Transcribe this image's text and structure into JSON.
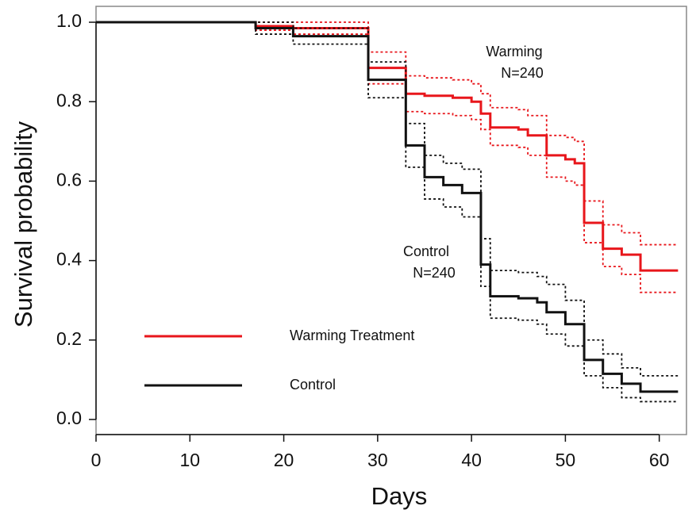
{
  "chart_data": {
    "type": "step",
    "xlabel": "Days",
    "ylabel": "Survival probability",
    "xlim": [
      0,
      62.9
    ],
    "ylim": [
      -0.038,
      1.04
    ],
    "xticks": [
      0,
      10,
      20,
      30,
      40,
      50,
      60
    ],
    "yticks": [
      {
        "value": 0,
        "label": "0.0"
      },
      0.2,
      0.4,
      0.6,
      0.8,
      {
        "value": 1,
        "label": "1.0"
      }
    ],
    "legend": "lower left",
    "series": [
      {
        "name": "Warming Treatment",
        "color": "#e8161b",
        "x": [
          0,
          17,
          21,
          29,
          33,
          35,
          38,
          40,
          41,
          42,
          45,
          46,
          48,
          50,
          51,
          52,
          54,
          56,
          58,
          62
        ],
        "values": [
          1.0,
          0.99,
          0.985,
          0.885,
          0.82,
          0.815,
          0.81,
          0.8,
          0.77,
          0.735,
          0.73,
          0.715,
          0.665,
          0.655,
          0.645,
          0.495,
          0.43,
          0.415,
          0.375,
          0.375
        ],
        "upper": [
          1.0,
          1.0,
          1.0,
          0.925,
          0.865,
          0.86,
          0.855,
          0.845,
          0.82,
          0.785,
          0.78,
          0.765,
          0.715,
          0.71,
          0.7,
          0.55,
          0.49,
          0.47,
          0.44,
          0.44
        ],
        "lower": [
          1.0,
          0.98,
          0.97,
          0.845,
          0.775,
          0.77,
          0.765,
          0.755,
          0.73,
          0.69,
          0.685,
          0.665,
          0.61,
          0.6,
          0.59,
          0.445,
          0.385,
          0.365,
          0.32,
          0.32
        ]
      },
      {
        "name": "Control",
        "color": "#111111",
        "x": [
          0,
          17,
          21,
          29,
          33,
          35,
          37,
          39,
          41,
          42,
          45,
          47,
          48,
          50,
          52,
          54,
          56,
          58,
          62
        ],
        "values": [
          1.0,
          0.985,
          0.965,
          0.855,
          0.69,
          0.61,
          0.59,
          0.57,
          0.39,
          0.31,
          0.305,
          0.295,
          0.27,
          0.24,
          0.15,
          0.115,
          0.09,
          0.07,
          0.07
        ],
        "upper": [
          1.0,
          1.0,
          0.985,
          0.9,
          0.745,
          0.665,
          0.645,
          0.63,
          0.455,
          0.375,
          0.37,
          0.36,
          0.34,
          0.3,
          0.2,
          0.165,
          0.13,
          0.11,
          0.11
        ],
        "lower": [
          1.0,
          0.97,
          0.945,
          0.81,
          0.635,
          0.555,
          0.535,
          0.51,
          0.335,
          0.255,
          0.25,
          0.24,
          0.215,
          0.185,
          0.11,
          0.08,
          0.055,
          0.045,
          0.045
        ]
      }
    ],
    "annotations": [
      [
        "Warming",
        "N=240"
      ],
      [
        "Control",
        "N=240"
      ]
    ]
  }
}
